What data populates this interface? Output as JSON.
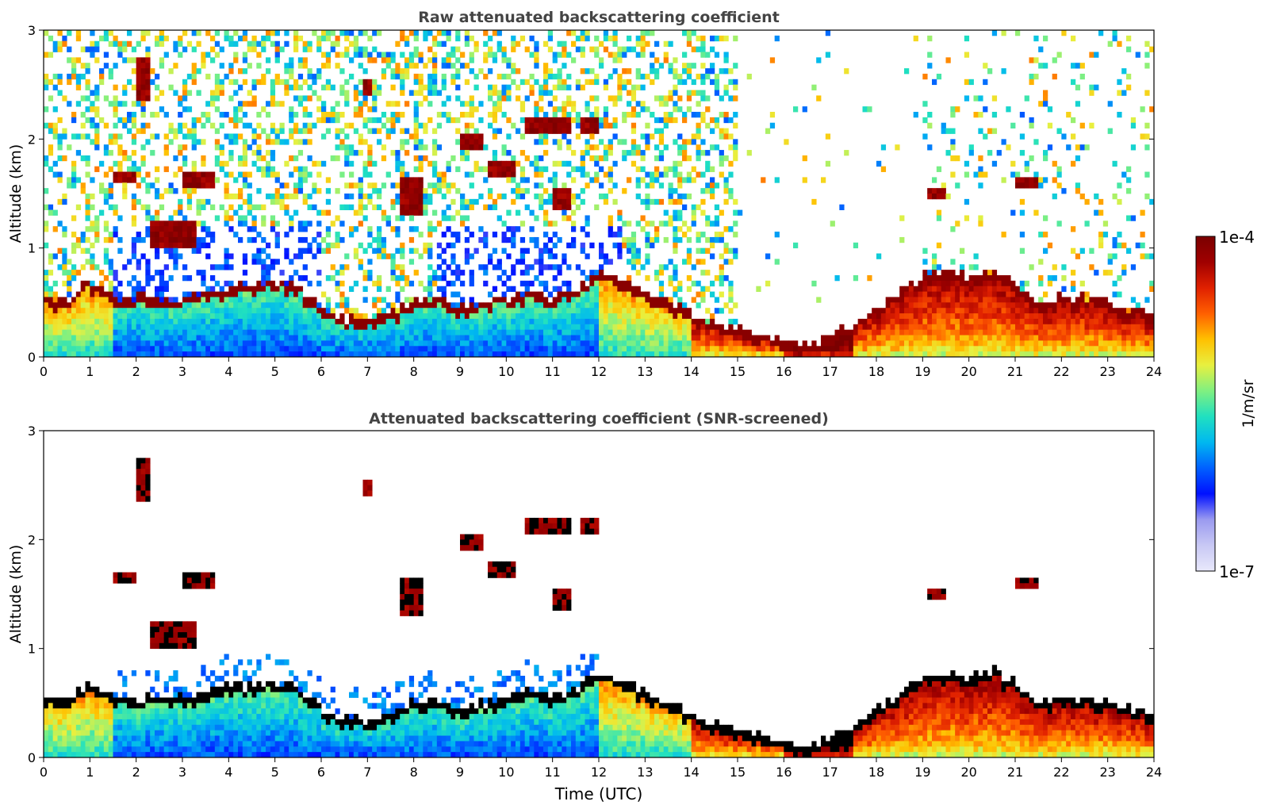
{
  "colors": {
    "title": "#444444",
    "axis": "#000000",
    "colormap": [
      "#e8e8fb",
      "#c8c8f4",
      "#9a9af0",
      "#0010ff",
      "#0060ff",
      "#00b8f0",
      "#20e0c0",
      "#80f080",
      "#e8f040",
      "#ffc000",
      "#ff6000",
      "#e02000",
      "#a00000",
      "#7a0000"
    ],
    "outline": "#000000"
  },
  "chart_data": [
    {
      "type": "heatmap",
      "title": "Raw attenuated backscattering coefficient",
      "xlabel": "",
      "ylabel": "Altitude (km)",
      "xlim": [
        0,
        24
      ],
      "ylim": [
        0,
        3
      ],
      "xticks": [
        "0",
        "1",
        "2",
        "3",
        "4",
        "5",
        "6",
        "7",
        "8",
        "9",
        "10",
        "11",
        "12",
        "13",
        "14",
        "15",
        "16",
        "17",
        "18",
        "19",
        "20",
        "21",
        "22",
        "23",
        "24"
      ],
      "yticks": [
        "0",
        "1",
        "2",
        "3"
      ],
      "boundary_layer_top_km": [
        [
          0,
          0.55
        ],
        [
          0.5,
          0.52
        ],
        [
          1,
          0.7
        ],
        [
          1.5,
          0.55
        ],
        [
          2,
          0.55
        ],
        [
          2.5,
          0.55
        ],
        [
          3,
          0.55
        ],
        [
          3.5,
          0.6
        ],
        [
          4,
          0.65
        ],
        [
          4.5,
          0.65
        ],
        [
          5,
          0.7
        ],
        [
          5.5,
          0.65
        ],
        [
          6,
          0.45
        ],
        [
          6.5,
          0.35
        ],
        [
          7,
          0.35
        ],
        [
          7.5,
          0.4
        ],
        [
          8,
          0.5
        ],
        [
          8.5,
          0.55
        ],
        [
          9,
          0.45
        ],
        [
          9.5,
          0.5
        ],
        [
          10,
          0.55
        ],
        [
          10.5,
          0.6
        ],
        [
          11,
          0.55
        ],
        [
          11.5,
          0.6
        ],
        [
          12,
          0.8
        ],
        [
          12.5,
          0.7
        ],
        [
          13,
          0.6
        ],
        [
          13.5,
          0.5
        ],
        [
          14,
          0.4
        ],
        [
          14.5,
          0.3
        ],
        [
          15,
          0.25
        ],
        [
          15.5,
          0.2
        ],
        [
          16,
          0.15
        ],
        [
          16.5,
          0.12
        ],
        [
          17,
          0.18
        ],
        [
          17.5,
          0.3
        ],
        [
          18,
          0.45
        ],
        [
          18.5,
          0.6
        ],
        [
          19,
          0.75
        ],
        [
          19.5,
          0.8
        ],
        [
          20,
          0.75
        ],
        [
          20.5,
          0.8
        ],
        [
          21,
          0.7
        ],
        [
          21.5,
          0.5
        ],
        [
          22,
          0.55
        ],
        [
          22.5,
          0.55
        ],
        [
          23,
          0.5
        ],
        [
          23.5,
          0.45
        ],
        [
          24,
          0.4
        ]
      ],
      "cloud_layers": [
        {
          "t0": 2.0,
          "t1": 2.3,
          "z0": 2.35,
          "z1": 2.75
        },
        {
          "t0": 1.5,
          "t1": 2.0,
          "z0": 1.6,
          "z1": 1.7
        },
        {
          "t0": 2.3,
          "t1": 3.3,
          "z0": 1.0,
          "z1": 1.25
        },
        {
          "t0": 3.0,
          "t1": 3.7,
          "z0": 1.55,
          "z1": 1.7
        },
        {
          "t0": 6.9,
          "t1": 7.1,
          "z0": 2.4,
          "z1": 2.55
        },
        {
          "t0": 7.7,
          "t1": 8.2,
          "z0": 1.3,
          "z1": 1.65
        },
        {
          "t0": 9.0,
          "t1": 9.5,
          "z0": 1.9,
          "z1": 2.05
        },
        {
          "t0": 10.4,
          "t1": 11.4,
          "z0": 2.05,
          "z1": 2.2
        },
        {
          "t0": 11.0,
          "t1": 11.4,
          "z0": 1.35,
          "z1": 1.55
        },
        {
          "t0": 11.6,
          "t1": 12.0,
          "z0": 2.05,
          "z1": 2.2
        },
        {
          "t0": 9.6,
          "t1": 10.2,
          "z0": 1.65,
          "z1": 1.8
        },
        {
          "t0": 21.0,
          "t1": 21.5,
          "z0": 1.55,
          "z1": 1.65
        },
        {
          "t0": 19.1,
          "t1": 19.5,
          "z0": 1.45,
          "z1": 1.55
        }
      ]
    },
    {
      "type": "heatmap",
      "title": "Attenuated backscattering coefficient (SNR-screened)",
      "xlabel": "Time (UTC)",
      "ylabel": "Altitude (km)",
      "xlim": [
        0,
        24
      ],
      "ylim": [
        0,
        3
      ],
      "xticks": [
        "0",
        "1",
        "2",
        "3",
        "4",
        "5",
        "6",
        "7",
        "8",
        "9",
        "10",
        "11",
        "12",
        "13",
        "14",
        "15",
        "16",
        "17",
        "18",
        "19",
        "20",
        "21",
        "22",
        "23",
        "24"
      ],
      "yticks": [
        "0",
        "1",
        "2",
        "3"
      ]
    }
  ],
  "colorbar": {
    "label": "1/m/sr",
    "max_label": "1e-4",
    "min_label": "1e-7",
    "range": [
      "1e-7",
      "1e-4"
    ]
  }
}
